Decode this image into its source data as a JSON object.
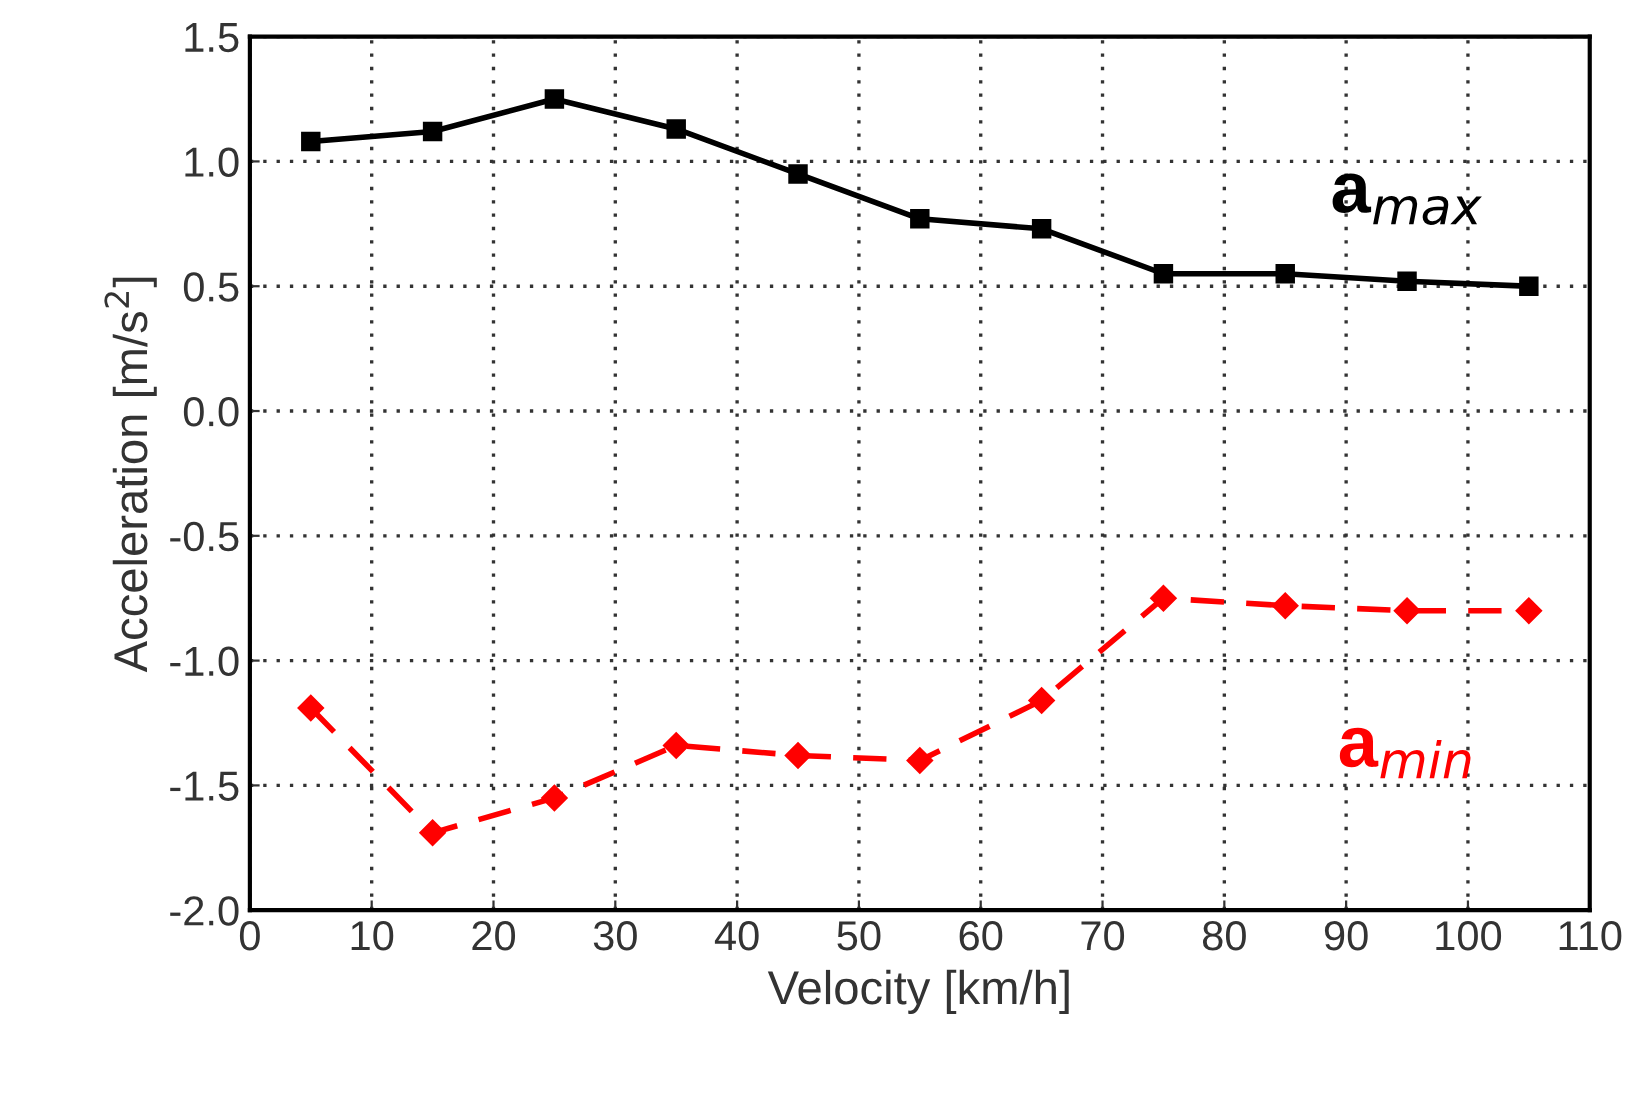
{
  "chart_data": {
    "type": "line",
    "xlabel": "Velocity [km/h]",
    "ylabel": "Acceleration [m/s$^{2}$]",
    "x": [
      5,
      15,
      25,
      35,
      45,
      55,
      65,
      75,
      85,
      95,
      105
    ],
    "series": [
      {
        "name": "a$_{max}$",
        "color": "#000000",
        "marker": "square",
        "line_style": "solid",
        "values": [
          1.08,
          1.12,
          1.25,
          1.13,
          0.95,
          0.77,
          0.73,
          0.55,
          0.55,
          0.52,
          0.5
        ]
      },
      {
        "name": "a$_{min}$",
        "color": "#ff0000",
        "marker": "diamond",
        "line_style": "dashed",
        "values": [
          -1.19,
          -1.69,
          -1.55,
          -1.34,
          -1.38,
          -1.4,
          -1.16,
          -0.75,
          -0.78,
          -0.8,
          -0.8
        ]
      }
    ],
    "xlim": [
      0,
      110
    ],
    "xticks": [
      0,
      10,
      20,
      30,
      40,
      50,
      60,
      70,
      80,
      90,
      100,
      110
    ],
    "ylim": [
      -2.0,
      1.5
    ],
    "yticks": [
      {
        "value": -2.0,
        "label": "-2.0"
      },
      {
        "value": -1.5,
        "label": "-1.5"
      },
      {
        "value": -1.0,
        "label": "-1.0"
      },
      {
        "value": -0.5,
        "label": "-0.5"
      },
      {
        "value": 0.0,
        "label": "0.0"
      },
      {
        "value": 0.5,
        "label": "0.5"
      },
      {
        "value": 1.0,
        "label": "1.0"
      },
      {
        "value": 1.5,
        "label": "1.5"
      }
    ],
    "grid": true,
    "legend": false
  }
}
